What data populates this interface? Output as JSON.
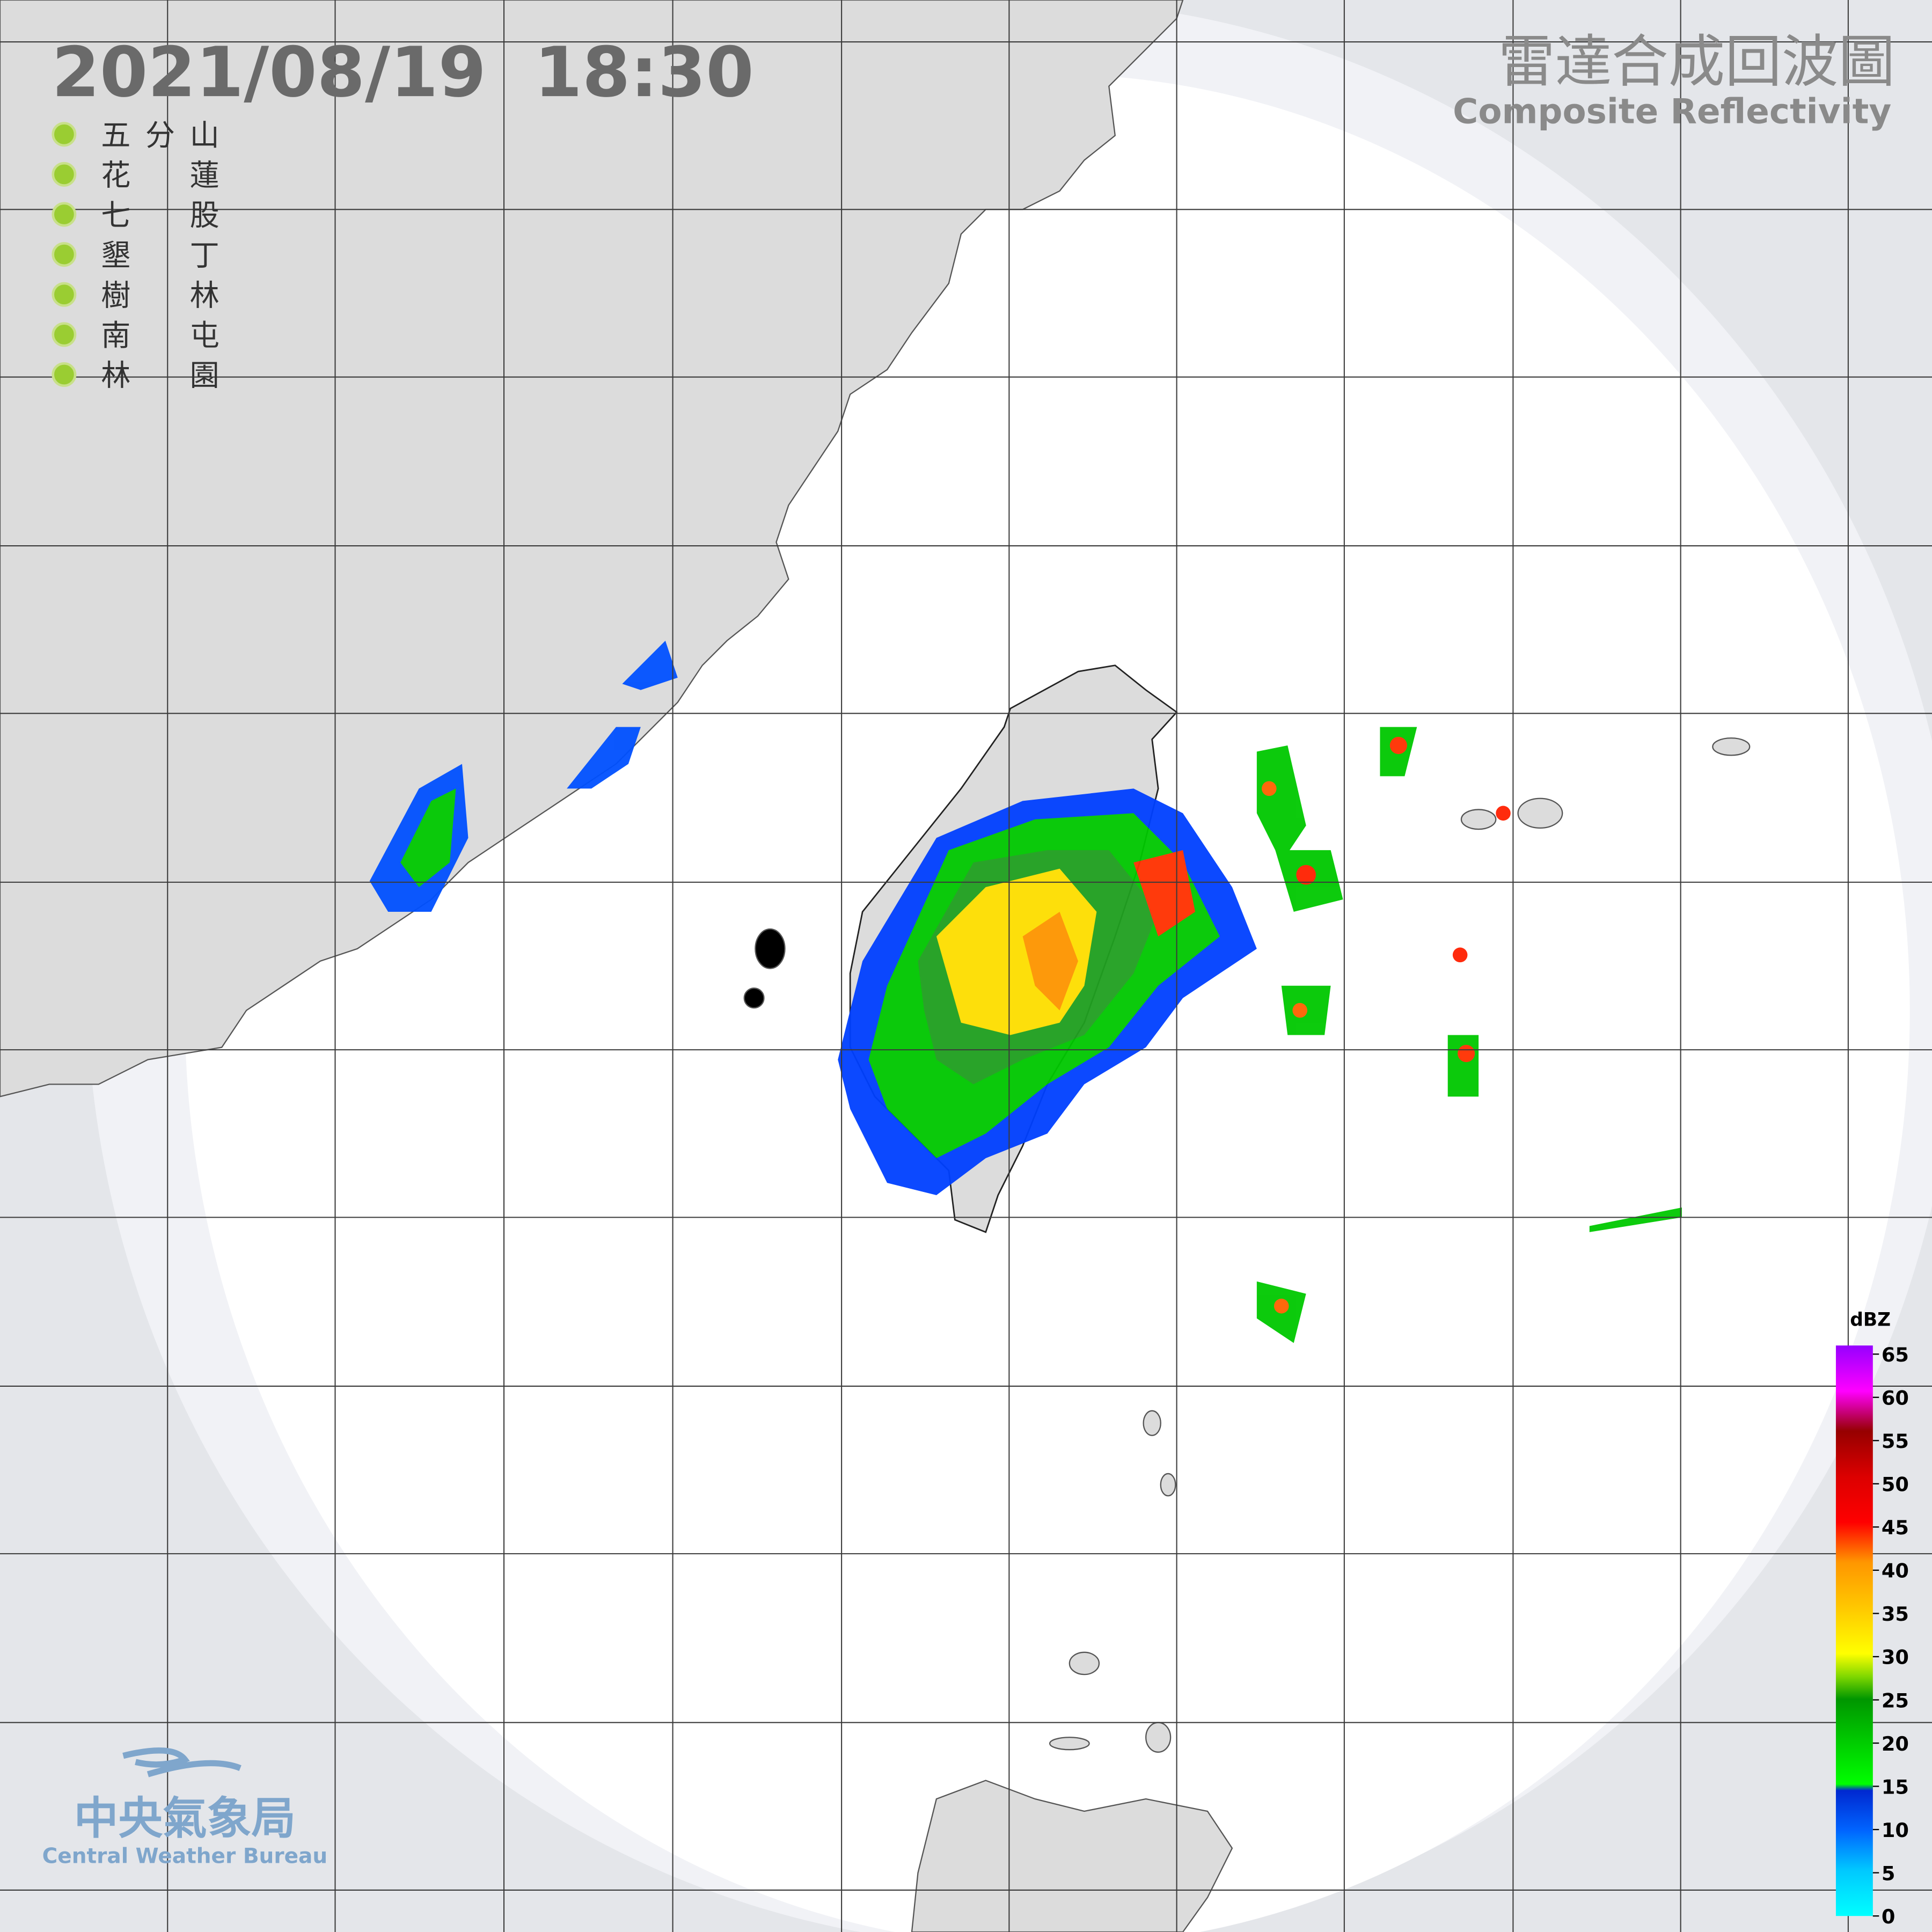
{
  "header": {
    "datetime": "2021/08/19  18:30",
    "title": "雷達合成回波圖",
    "subtitle": "Composite Reflectivity"
  },
  "stations": [
    "五分山",
    "花蓮",
    "七股",
    "墾丁",
    "樹林",
    "南屯",
    "林園"
  ],
  "legend": {
    "unit": "dBZ",
    "ticks": [
      0,
      5,
      10,
      15,
      20,
      25,
      30,
      35,
      40,
      45,
      50,
      55,
      60,
      65
    ]
  },
  "logo": {
    "name": "中央氣象局",
    "name_en": "Central Weather Bureau"
  }
}
